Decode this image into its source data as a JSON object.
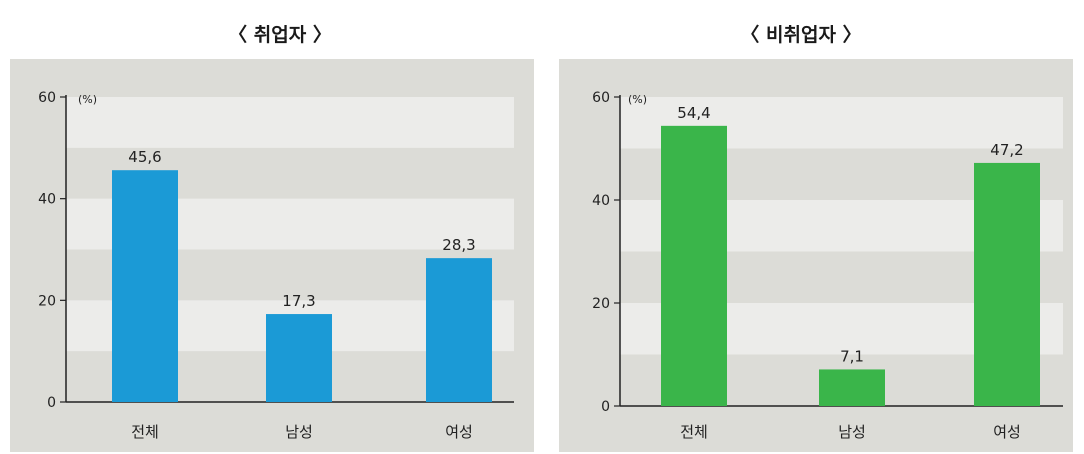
{
  "chart_data": [
    {
      "type": "bar",
      "title": "〈 취업자 〉",
      "unit_label": "(%)",
      "categories": [
        "전체",
        "남성",
        "여성"
      ],
      "values": [
        45.6,
        17.3,
        28.3
      ],
      "value_labels": [
        "45,6",
        "17,3",
        "28,3"
      ],
      "yticks": [
        "0",
        "20",
        "40",
        "60"
      ],
      "ylim": [
        0,
        60
      ],
      "bar_color": "#1b9ad6"
    },
    {
      "type": "bar",
      "title": "〈 비취업자 〉",
      "unit_label": "(%)",
      "categories": [
        "전체",
        "남성",
        "여성"
      ],
      "values": [
        54.4,
        7.1,
        47.2
      ],
      "value_labels": [
        "54,4",
        "7,1",
        "47,2"
      ],
      "yticks": [
        "0",
        "20",
        "40",
        "60"
      ],
      "ylim": [
        0,
        60
      ],
      "bar_color": "#3ab54a"
    }
  ]
}
